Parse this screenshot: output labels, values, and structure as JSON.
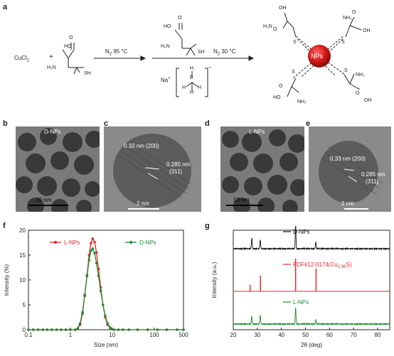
{
  "figure": {
    "panels": {
      "a": "a",
      "b": "b",
      "c": "c",
      "d": "d",
      "e": "e",
      "f": "f",
      "g": "g"
    },
    "scheme": {
      "reactant1": "CuCl",
      "reactant1_sub": "2",
      "plus": "+",
      "step1_label": "N",
      "step1_sub": "2",
      "step1_rest": " 95 °C",
      "step2_label": "N",
      "step2_sub": "2",
      "step2_rest": " 30 °C",
      "na": "Na",
      "na_sup": "+",
      "bh4_minus": "−",
      "nps": "NPs",
      "atoms": {
        "HO": "HO",
        "OH": "OH",
        "O": "O",
        "H2N": "H₂N",
        "NH2": "NH₂",
        "SH": "SH",
        "S": "S",
        "B": "B",
        "H": "H"
      }
    },
    "tem": {
      "b_title": "D-NPs",
      "b_scale": "10 nm",
      "c_d1": "0.33 nm (200)",
      "c_d2": "0.285 nm",
      "c_d2b": "(311)",
      "c_scale": "2 nm",
      "d_title": "L-NPs",
      "d_scale": "10 nm",
      "e_d1": "0.33 nm (200)",
      "e_d2": "0.285 nm",
      "e_d2b": "(311)",
      "e_scale": "2 nm"
    }
  },
  "chart_data": [
    {
      "type": "line",
      "panel": "f",
      "xlabel": "Size (nm)",
      "ylabel": "Intensity (%)",
      "xscale": "log",
      "xlim": [
        0.1,
        500
      ],
      "ylim": [
        0,
        20
      ],
      "xticks": [
        "0.1",
        "1",
        "10",
        "100",
        "500"
      ],
      "yticks": [
        "0",
        "5",
        "10",
        "15",
        "20"
      ],
      "legend": [
        {
          "name": "L-NPs",
          "color": "#e8262a"
        },
        {
          "name": "D-NPs",
          "color": "#1e8c2f"
        }
      ],
      "series": [
        {
          "name": "L-NPs",
          "color": "#e8262a",
          "x": [
            0.1,
            0.13,
            0.17,
            0.22,
            0.28,
            0.36,
            0.47,
            0.6,
            0.78,
            1.0,
            1.3,
            1.5,
            1.7,
            1.95,
            2.2,
            2.5,
            2.8,
            3.1,
            3.4,
            3.8,
            4.2,
            4.7,
            5.3,
            6.0,
            6.8,
            7.7,
            9.0,
            11,
            14,
            18,
            25,
            40,
            70,
            120,
            200,
            350,
            500
          ],
          "y": [
            0,
            0,
            0,
            0,
            0,
            0,
            0,
            0,
            0,
            0,
            0,
            0.2,
            1.0,
            3.2,
            6.8,
            11.0,
            15.0,
            17.4,
            18.3,
            17.6,
            15.5,
            12.2,
            8.5,
            5.0,
            2.5,
            1.0,
            0.3,
            0,
            0,
            0,
            0,
            0,
            0,
            0,
            0,
            0,
            0
          ]
        },
        {
          "name": "D-NPs",
          "color": "#1e8c2f",
          "x": [
            0.1,
            0.13,
            0.17,
            0.22,
            0.28,
            0.36,
            0.47,
            0.6,
            0.78,
            1.0,
            1.3,
            1.5,
            1.7,
            1.95,
            2.2,
            2.5,
            2.8,
            3.1,
            3.4,
            3.8,
            4.2,
            4.7,
            5.3,
            6.0,
            6.8,
            7.7,
            9.0,
            11,
            14,
            18,
            25,
            40,
            70,
            120,
            200,
            350,
            500
          ],
          "y": [
            0,
            0,
            0,
            0,
            0,
            0,
            0,
            0,
            0,
            0,
            0,
            0.3,
            1.2,
            3.5,
            7.0,
            10.8,
            14.0,
            15.9,
            16.3,
            15.4,
            13.4,
            10.8,
            7.8,
            5.0,
            2.8,
            1.3,
            0.4,
            0,
            0,
            0,
            0,
            0,
            0,
            0,
            0,
            0,
            0
          ]
        }
      ]
    },
    {
      "type": "line",
      "panel": "g",
      "xlabel": "2θ (deg)",
      "ylabel": "Intensity (a.u.)",
      "xlim": [
        20,
        85
      ],
      "xticks": [
        "20",
        "30",
        "40",
        "50",
        "60",
        "70",
        "80"
      ],
      "series": [
        {
          "name": "D-NPs",
          "color": "#111111",
          "kind": "profile",
          "peaks": [
            [
              27.7,
              0.45
            ],
            [
              31.2,
              0.38
            ],
            [
              45.9,
              1.0
            ],
            [
              54.3,
              0.28
            ]
          ]
        },
        {
          "name": "PDF#12-0174(Cu",
          "name_sub": "1.96",
          "name_end": "S)",
          "color": "#e8262a",
          "kind": "sticks",
          "peaks": [
            [
              27.0,
              0.2
            ],
            [
              31.3,
              0.48
            ],
            [
              45.9,
              1.0
            ],
            [
              54.4,
              0.7
            ]
          ]
        },
        {
          "name": "L-NPs",
          "color": "#1e8c2f",
          "kind": "profile",
          "peaks": [
            [
              27.7,
              0.35
            ],
            [
              31.2,
              0.4
            ],
            [
              45.9,
              0.72
            ],
            [
              54.3,
              0.2
            ]
          ]
        }
      ]
    }
  ]
}
